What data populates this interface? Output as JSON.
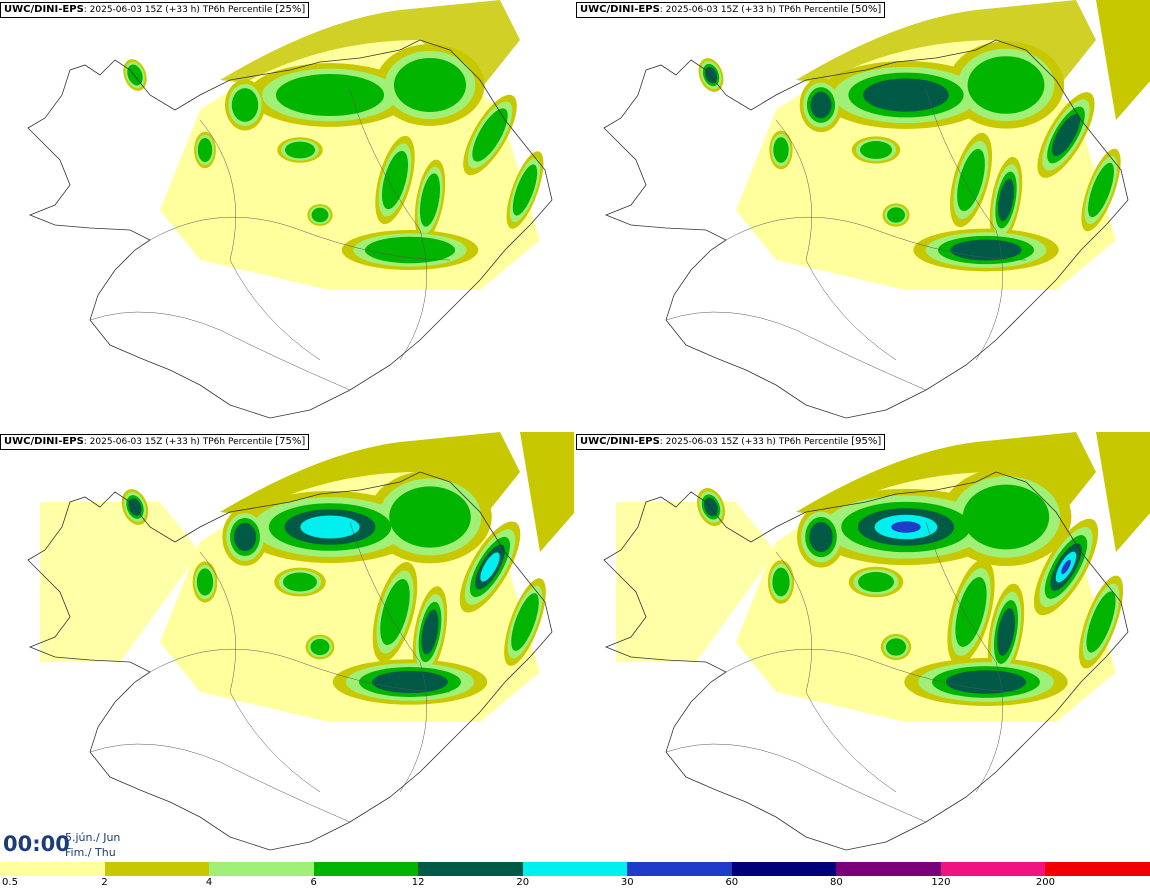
{
  "panels": [
    {
      "model": "UWC/DINI-EPS",
      "run": ": 2025-06-03 15Z (+33 h) TP6h Percentile ",
      "percentile": "[25%]",
      "intensity": 1
    },
    {
      "model": "UWC/DINI-EPS",
      "run": ": 2025-06-03 15Z (+33 h) TP6h Percentile ",
      "percentile": "[50%]",
      "intensity": 2
    },
    {
      "model": "UWC/DINI-EPS",
      "run": ": 2025-06-03 15Z (+33 h) TP6h Percentile ",
      "percentile": "[75%]",
      "intensity": 3
    },
    {
      "model": "UWC/DINI-EPS",
      "run": ": 2025-06-03 15Z (+33 h) TP6h Percentile ",
      "percentile": "[95%]",
      "intensity": 4
    }
  ],
  "valid_time": {
    "time": "00:00",
    "date_line1": "5.jún./ Jun",
    "date_line2": "Fim./ Thu"
  },
  "colorbar": {
    "labels": [
      "0.5",
      "2",
      "4",
      "6",
      "12",
      "20",
      "30",
      "60",
      "80",
      "120",
      "200"
    ],
    "colors": [
      "#ffff9e",
      "#c8c800",
      "#a0f078",
      "#00b400",
      "#005a46",
      "#00f0f0",
      "#1e3cc8",
      "#000078",
      "#780078",
      "#f01482",
      "#f00000"
    ]
  }
}
